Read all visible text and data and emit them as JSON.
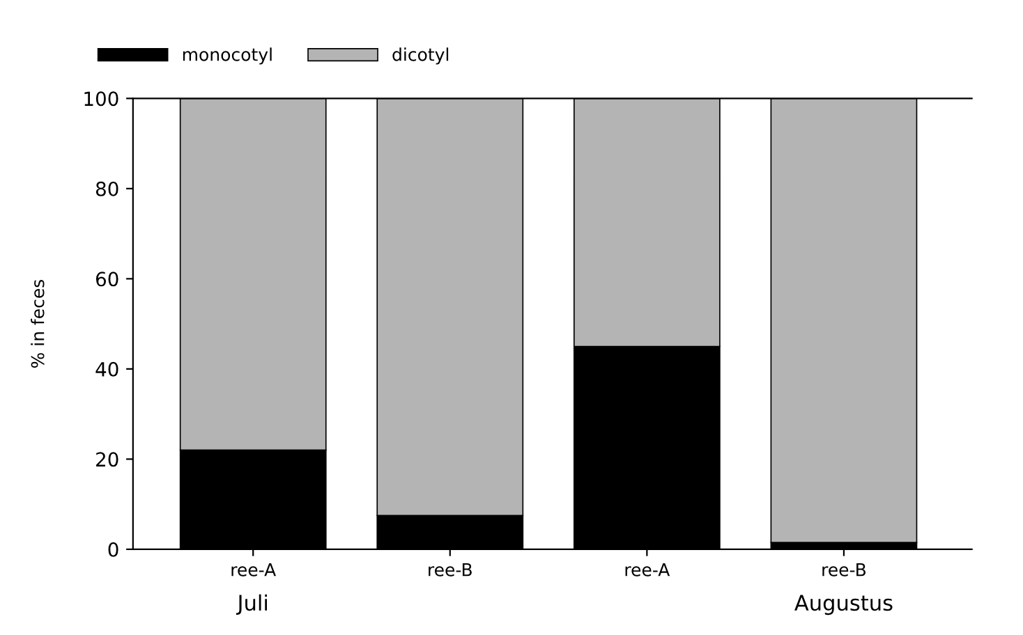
{
  "chart_data": {
    "type": "bar",
    "stacked": true,
    "ylabel": "% in feces",
    "categories": [
      "ree-A",
      "ree-B",
      "ree-A",
      "ree-B"
    ],
    "series": [
      {
        "name": "monocotyl",
        "color": "#000000",
        "values": [
          22,
          7.5,
          45,
          1.5
        ]
      },
      {
        "name": "dicotyl",
        "color": "#b4b4b4",
        "values": [
          78,
          92.5,
          55,
          98.5
        ]
      }
    ],
    "ylim": [
      0,
      100
    ],
    "yticks": [
      0,
      20,
      40,
      60,
      80,
      100
    ],
    "annotations": [
      "Juli",
      "Augustus"
    ],
    "legend": "top left",
    "grid": false
  }
}
